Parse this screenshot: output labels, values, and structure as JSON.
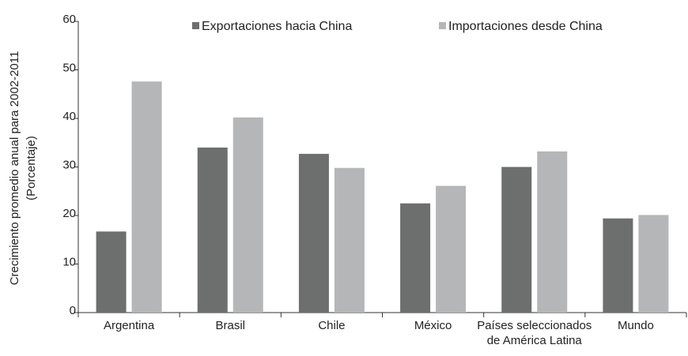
{
  "chart_data": {
    "type": "bar",
    "title": "",
    "xlabel": "",
    "ylabel": [
      "Crecimiento promedio anual para 2002-2011",
      "(Porcentaje)"
    ],
    "ylim": [
      0,
      60
    ],
    "yticks": [
      0,
      10,
      20,
      30,
      40,
      50,
      60
    ],
    "categories": [
      [
        "Argentina"
      ],
      [
        "Brasil"
      ],
      [
        "Chile"
      ],
      [
        "México"
      ],
      [
        "Países seleccionados",
        "de América Latina"
      ],
      [
        "Mundo"
      ]
    ],
    "series": [
      {
        "name": "Exportaciones hacia China",
        "color": "#6d6e6e",
        "values": [
          16.7,
          34.0,
          32.7,
          22.5,
          30.0,
          19.4
        ]
      },
      {
        "name": "Importaciones desde China",
        "color": "#b5b6b8",
        "values": [
          47.6,
          40.2,
          29.8,
          26.1,
          33.2,
          20.1
        ]
      }
    ],
    "legend_position": "top",
    "grid": false
  }
}
